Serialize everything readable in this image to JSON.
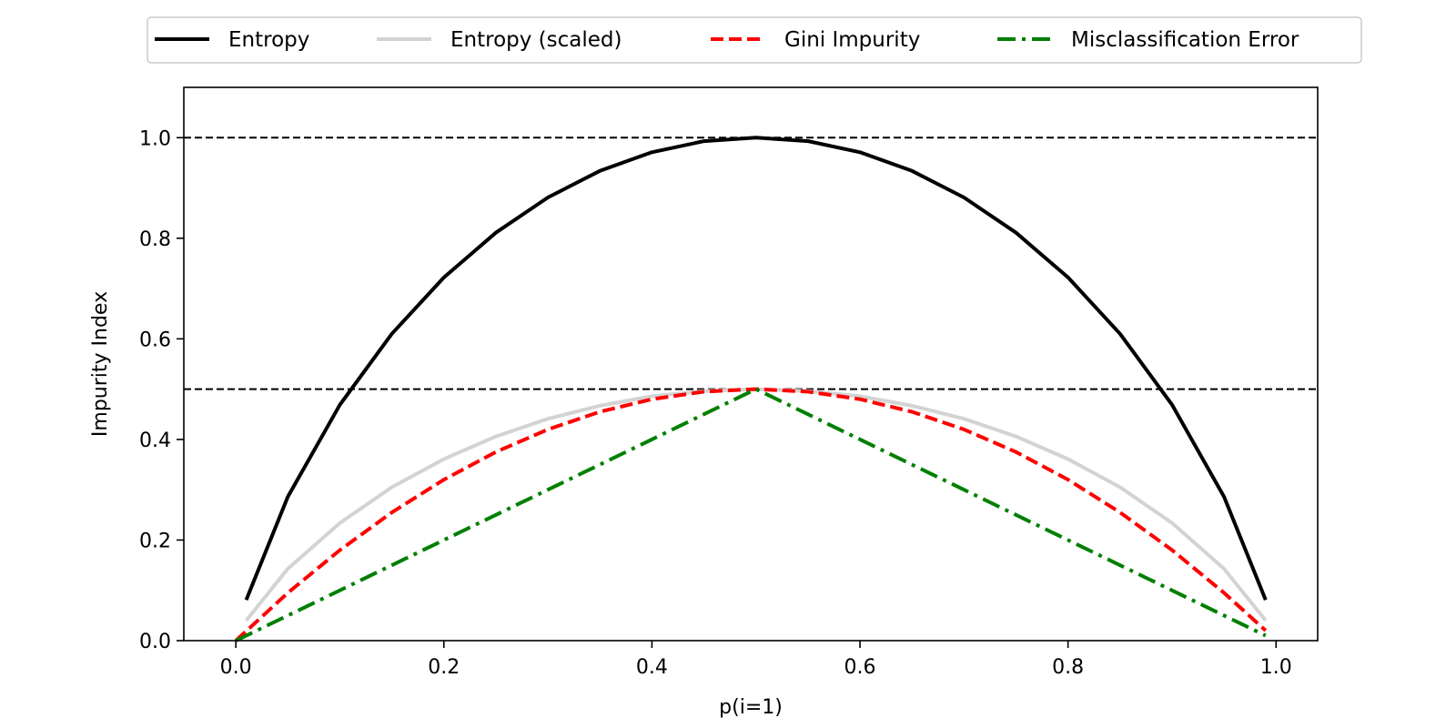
{
  "chart_data": {
    "type": "line",
    "title": "",
    "xlabel": "p(i=1)",
    "ylabel": "Impurity Index",
    "xlim": [
      -0.05,
      1.04
    ],
    "ylim": [
      0.0,
      1.1
    ],
    "xticks": [
      "0.0",
      "0.2",
      "0.4",
      "0.6",
      "0.8",
      "1.0"
    ],
    "yticks": [
      "0.0",
      "0.2",
      "0.4",
      "0.6",
      "0.8",
      "1.0"
    ],
    "grid": false,
    "legend_position": "top-center, outside plot",
    "reference_lines": [
      {
        "y": 1.0,
        "style": "dashed",
        "color": "#000000"
      },
      {
        "y": 0.5,
        "style": "dashed",
        "color": "#000000"
      }
    ],
    "x_range": [
      0.0,
      0.99
    ],
    "x": [
      0.0,
      0.01,
      0.05,
      0.1,
      0.15,
      0.2,
      0.25,
      0.3,
      0.35,
      0.4,
      0.45,
      0.5,
      0.55,
      0.6,
      0.65,
      0.7,
      0.75,
      0.8,
      0.85,
      0.9,
      0.95,
      0.99
    ],
    "series": [
      {
        "name": "Entropy",
        "color": "#000000",
        "dash": "solid",
        "x": [
          0.01,
          0.05,
          0.1,
          0.15,
          0.2,
          0.25,
          0.3,
          0.35,
          0.4,
          0.45,
          0.5,
          0.55,
          0.6,
          0.65,
          0.7,
          0.75,
          0.8,
          0.85,
          0.9,
          0.95,
          0.99
        ],
        "values": [
          0.081,
          0.286,
          0.469,
          0.61,
          0.722,
          0.811,
          0.881,
          0.934,
          0.971,
          0.993,
          1.0,
          0.993,
          0.971,
          0.934,
          0.881,
          0.811,
          0.722,
          0.61,
          0.469,
          0.286,
          0.081
        ]
      },
      {
        "name": "Entropy (scaled)",
        "color": "#d3d3d3",
        "dash": "solid",
        "x": [
          0.01,
          0.05,
          0.1,
          0.15,
          0.2,
          0.25,
          0.3,
          0.35,
          0.4,
          0.45,
          0.5,
          0.55,
          0.6,
          0.65,
          0.7,
          0.75,
          0.8,
          0.85,
          0.9,
          0.95,
          0.99
        ],
        "values": [
          0.04,
          0.143,
          0.234,
          0.305,
          0.361,
          0.406,
          0.441,
          0.467,
          0.486,
          0.496,
          0.5,
          0.496,
          0.486,
          0.467,
          0.441,
          0.406,
          0.361,
          0.305,
          0.234,
          0.143,
          0.04
        ]
      },
      {
        "name": "Gini Impurity",
        "color": "#ff0000",
        "dash": "dashed",
        "x": [
          0.0,
          0.05,
          0.1,
          0.15,
          0.2,
          0.25,
          0.3,
          0.35,
          0.4,
          0.45,
          0.5,
          0.55,
          0.6,
          0.65,
          0.7,
          0.75,
          0.8,
          0.85,
          0.9,
          0.95,
          0.99
        ],
        "values": [
          0.0,
          0.095,
          0.18,
          0.255,
          0.32,
          0.375,
          0.42,
          0.455,
          0.48,
          0.495,
          0.5,
          0.495,
          0.48,
          0.455,
          0.42,
          0.375,
          0.32,
          0.255,
          0.18,
          0.095,
          0.02
        ]
      },
      {
        "name": "Misclassification Error",
        "color": "#008000",
        "dash": "dashdot",
        "x": [
          0.0,
          0.5,
          0.99
        ],
        "values": [
          0.0,
          0.5,
          0.01
        ]
      }
    ]
  }
}
